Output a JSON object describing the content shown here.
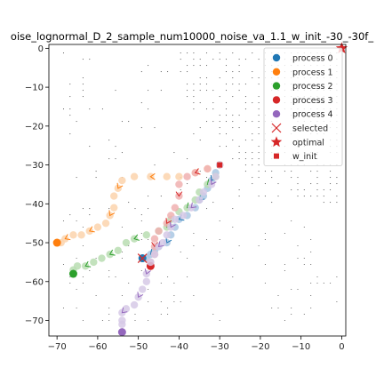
{
  "chart_data": {
    "type": "scatter",
    "title": "oise_lognormal_D_2_sample_num10000_noise_va_1.1_w_init_-30_-30f_",
    "xlabel": "",
    "ylabel": "",
    "xlim": [
      -72,
      1
    ],
    "ylim": [
      -74,
      1
    ],
    "x_ticks": [
      -70,
      -60,
      -50,
      -40,
      -30,
      -20,
      -10,
      0
    ],
    "y_ticks": [
      0,
      -10,
      -20,
      -30,
      -40,
      -50,
      -60,
      -70
    ],
    "x_tick_labels": [
      "−70",
      "−60",
      "−50",
      "−40",
      "−30",
      "−20",
      "−10",
      "0"
    ],
    "y_tick_labels": [
      "0",
      "−10",
      "−20",
      "−30",
      "−40",
      "−50",
      "−60",
      "−70"
    ],
    "legend": {
      "placement": "top-right",
      "entries": [
        {
          "label": "process 0",
          "marker": "circle",
          "color": "#1f77b4"
        },
        {
          "label": "process 1",
          "marker": "circle",
          "color": "#ff7f0e"
        },
        {
          "label": "process 2",
          "marker": "circle",
          "color": "#2ca02c"
        },
        {
          "label": "process 3",
          "marker": "circle",
          "color": "#d62728"
        },
        {
          "label": "process 4",
          "marker": "circle",
          "color": "#9467bd"
        },
        {
          "label": "selected",
          "marker": "x",
          "color": "#d62728"
        },
        {
          "label": "optimal",
          "marker": "star",
          "color": "#d62728"
        },
        {
          "label": "w_init",
          "marker": "square",
          "color": "#d62728"
        }
      ]
    },
    "w_init": [
      -30,
      -30
    ],
    "optimal": [
      0,
      0
    ],
    "selected": [
      -49,
      -54
    ],
    "series": [
      {
        "color": "#1f77b4",
        "light": "#a9c7e3",
        "path": [
          [
            -30,
            -30
          ],
          [
            -31,
            -32
          ],
          [
            -32,
            -34
          ],
          [
            -33,
            -36
          ],
          [
            -34,
            -38
          ],
          [
            -35,
            -39
          ],
          [
            -36,
            -41
          ],
          [
            -38,
            -43
          ],
          [
            -40,
            -44
          ],
          [
            -41,
            -46
          ],
          [
            -42,
            -48
          ],
          [
            -43,
            -50
          ],
          [
            -45,
            -51
          ],
          [
            -46,
            -52
          ],
          [
            -47,
            -53
          ],
          [
            -48,
            -54
          ]
        ],
        "end": [
          -49,
          -54
        ]
      },
      {
        "color": "#ff7f0e",
        "light": "#fcd3ad",
        "path": [
          [
            -30,
            -30
          ],
          [
            -33,
            -31
          ],
          [
            -36,
            -32
          ],
          [
            -40,
            -33
          ],
          [
            -43,
            -33
          ],
          [
            -47,
            -33
          ],
          [
            -51,
            -33
          ],
          [
            -54,
            -34
          ],
          [
            -55,
            -36
          ],
          [
            -56,
            -38
          ],
          [
            -56,
            -41
          ],
          [
            -57,
            -43
          ],
          [
            -58,
            -45
          ],
          [
            -60,
            -46
          ],
          [
            -62,
            -47
          ],
          [
            -64,
            -48
          ],
          [
            -66,
            -48
          ],
          [
            -68,
            -49
          ],
          [
            -69,
            -50
          ]
        ],
        "end": [
          -70,
          -50
        ]
      },
      {
        "color": "#2ca02c",
        "light": "#b9ddb1",
        "path": [
          [
            -30,
            -30
          ],
          [
            -31,
            -33
          ],
          [
            -33,
            -35
          ],
          [
            -35,
            -37
          ],
          [
            -36,
            -39
          ],
          [
            -38,
            -41
          ],
          [
            -40,
            -42
          ],
          [
            -42,
            -44
          ],
          [
            -43,
            -46
          ],
          [
            -45,
            -47
          ],
          [
            -48,
            -48
          ],
          [
            -51,
            -49
          ],
          [
            -53,
            -50
          ],
          [
            -55,
            -52
          ],
          [
            -57,
            -53
          ],
          [
            -59,
            -54
          ],
          [
            -61,
            -55
          ],
          [
            -63,
            -56
          ],
          [
            -65,
            -56
          ],
          [
            -66,
            -57
          ]
        ],
        "end": [
          -66,
          -58
        ]
      },
      {
        "color": "#d62728",
        "light": "#f0b0b0",
        "path": [
          [
            -30,
            -30
          ],
          [
            -33,
            -31
          ],
          [
            -36,
            -32
          ],
          [
            -38,
            -33
          ],
          [
            -40,
            -35
          ],
          [
            -40,
            -38
          ],
          [
            -41,
            -41
          ],
          [
            -42,
            -43
          ],
          [
            -43,
            -45
          ],
          [
            -45,
            -47
          ],
          [
            -46,
            -49
          ],
          [
            -46,
            -51
          ],
          [
            -46,
            -53
          ],
          [
            -47,
            -55
          ]
        ],
        "end": [
          -47,
          -56
        ]
      },
      {
        "color": "#9467bd",
        "light": "#d6c9e6",
        "path": [
          [
            -30,
            -30
          ],
          [
            -31,
            -33
          ],
          [
            -32,
            -35
          ],
          [
            -34,
            -37
          ],
          [
            -35,
            -39
          ],
          [
            -37,
            -41
          ],
          [
            -39,
            -43
          ],
          [
            -41,
            -44
          ],
          [
            -42,
            -46
          ],
          [
            -43,
            -48
          ],
          [
            -44,
            -50
          ],
          [
            -45,
            -51
          ],
          [
            -46,
            -53
          ],
          [
            -47,
            -55
          ],
          [
            -48,
            -58
          ],
          [
            -48,
            -60
          ],
          [
            -49,
            -62
          ],
          [
            -50,
            -64
          ],
          [
            -51,
            -66
          ],
          [
            -53,
            -67
          ],
          [
            -54,
            -68
          ],
          [
            -54,
            -70
          ],
          [
            -54,
            -71
          ]
        ],
        "end": [
          -54,
          -73
        ]
      }
    ]
  }
}
